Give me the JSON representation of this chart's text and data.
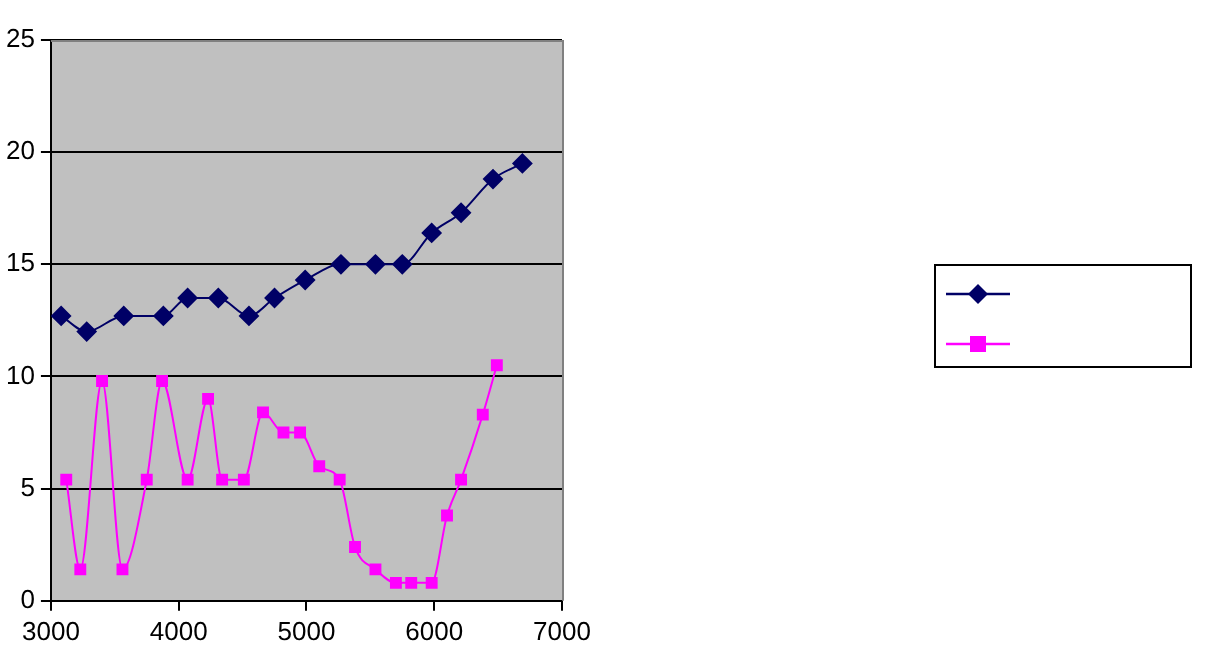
{
  "chart_data": {
    "type": "line",
    "xlim": [
      3000,
      7000
    ],
    "xticks": [
      3000,
      4000,
      5000,
      6000,
      7000
    ],
    "ylim": [
      0,
      25
    ],
    "yticks": [
      0,
      5,
      10,
      15,
      20,
      25
    ],
    "grid": "y",
    "series": [
      {
        "color": "#000066",
        "marker": "diamond",
        "x": [
          3080,
          3280,
          3570,
          3880,
          4070,
          4310,
          4550,
          4750,
          4990,
          5270,
          5540,
          5750,
          5980,
          6210,
          6460,
          6690
        ],
        "values": [
          12.7,
          12.0,
          12.7,
          12.7,
          13.5,
          13.5,
          12.7,
          13.5,
          14.3,
          15.0,
          15.0,
          15.0,
          16.4,
          17.3,
          18.8,
          19.5
        ]
      },
      {
        "color": "#ff00ff",
        "marker": "square",
        "x": [
          3120,
          3230,
          3400,
          3560,
          3750,
          3870,
          4070,
          4230,
          4340,
          4510,
          4660,
          4820,
          4950,
          5100,
          5260,
          5380,
          5540,
          5700,
          5820,
          5980,
          6100,
          6210,
          6380,
          6490
        ],
        "values": [
          5.4,
          1.4,
          9.8,
          1.4,
          5.4,
          9.8,
          5.4,
          9.0,
          5.4,
          5.4,
          8.4,
          7.5,
          7.5,
          6.0,
          5.4,
          2.4,
          1.4,
          0.8,
          0.8,
          0.8,
          3.8,
          5.4,
          8.3,
          10.5
        ]
      }
    ]
  }
}
